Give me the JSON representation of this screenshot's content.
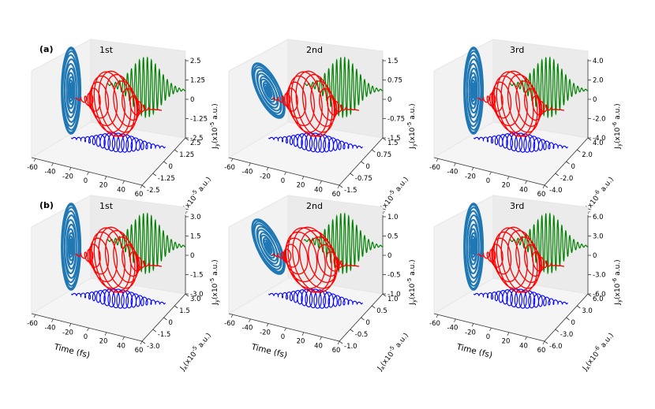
{
  "chart_data": {
    "type": "3d-line",
    "description_rows": [
      "(a)",
      "(b)"
    ],
    "xlabel": "Time (fs)",
    "x_ticks": [
      "-60",
      "-40",
      "-20",
      "0",
      "20",
      "40",
      "60"
    ],
    "panels": [
      {
        "row": "(a)",
        "title": "1st",
        "exp": "-5",
        "yticks": [
          "2.5",
          "1.25",
          "0",
          "-1.25",
          "-2.5"
        ],
        "xjticks": [
          "2.5",
          "1.25",
          "0",
          "-1.25",
          "-2.5"
        ],
        "cycles": 18,
        "blue_amp": 1.0
      },
      {
        "row": "(a)",
        "title": "2nd",
        "exp": "-5",
        "yticks": [
          "1.5",
          "0.75",
          "0",
          "-0.75",
          "-1.5"
        ],
        "xjticks": [
          "1.5",
          "0.75",
          "0",
          "-0.75",
          "-1.5"
        ],
        "cycles": 18,
        "blue_amp": 1.0
      },
      {
        "row": "(a)",
        "title": "3rd",
        "exp": "-6",
        "yticks": [
          "4.0",
          "2.0",
          "0",
          "-2.0",
          "-4.0"
        ],
        "xjticks": [
          "4.0",
          "2.0",
          "0",
          "-2.0",
          "-4.0"
        ],
        "cycles": 18,
        "blue_amp": 1.0
      },
      {
        "row": "(b)",
        "title": "1st",
        "exp": "-5",
        "yticks": [
          "3.0",
          "1.5",
          "0",
          "-1.5",
          "-3.0"
        ],
        "xjticks": [
          "3.0",
          "1.5",
          "0",
          "-1.5",
          "-3.0"
        ],
        "cycles": 18,
        "blue_amp": 1.0
      },
      {
        "row": "(b)",
        "title": "2nd",
        "exp": "-5",
        "yticks": [
          "1.0",
          "0.5",
          "0",
          "-0.5",
          "-1.0"
        ],
        "xjticks": [
          "1.0",
          "0.5",
          "0",
          "-0.5",
          "-1.0"
        ],
        "cycles": 18,
        "blue_amp": 1.0
      },
      {
        "row": "(b)",
        "title": "3rd",
        "exp": "-6",
        "yticks": [
          "6.0",
          "3.0",
          "0",
          "-3.0",
          "-6.0"
        ],
        "xjticks": [
          "6.0",
          "3.0",
          "0",
          "-3.0",
          "-6.0"
        ],
        "cycles": 18,
        "blue_amp": 1.0
      }
    ],
    "series": [
      {
        "name": "Jx-Jy parametric",
        "color": "#1f77b4"
      },
      {
        "name": "3D current",
        "color": "#ff0000"
      },
      {
        "name": "Jy projection",
        "color": "#008000"
      },
      {
        "name": "Jx projection",
        "color": "#0000ff"
      }
    ]
  },
  "labels": {
    "row_a": "(a)",
    "row_b": "(b)",
    "jy_prefix": "J",
    "jy_sub": "y",
    "jx_prefix": "J",
    "jx_sub": "x",
    "unit_open": "(x10",
    "unit_close": " a.u.)"
  }
}
